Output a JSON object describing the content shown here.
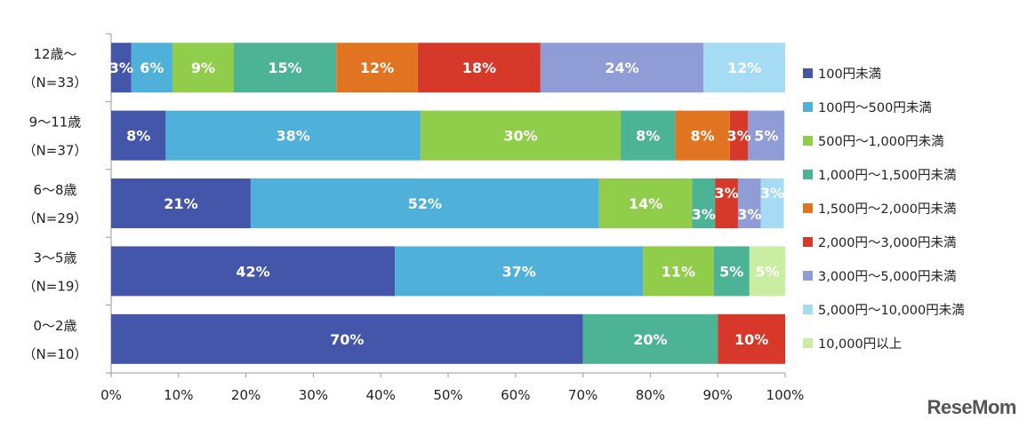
{
  "chart_data": {
    "type": "bar",
    "orientation": "horizontal",
    "stacked": "percent",
    "title": "",
    "xlabel": "",
    "ylabel": "",
    "xlim": [
      0,
      100
    ],
    "x_ticks": [
      "0%",
      "10%",
      "20%",
      "30%",
      "40%",
      "50%",
      "60%",
      "70%",
      "80%",
      "90%",
      "100%"
    ],
    "grid": false,
    "legend_position": "right",
    "categories": [
      {
        "label": "12歳～",
        "n": "（N=33）"
      },
      {
        "label": "9～11歳",
        "n": "（N=37）"
      },
      {
        "label": "6～8歳",
        "n": "（N=29）"
      },
      {
        "label": "3～5歳",
        "n": "（N=19）"
      },
      {
        "label": "0～2歳",
        "n": "（N=10）"
      }
    ],
    "series": [
      {
        "name": "100円未満",
        "color": "#4356a9",
        "values": [
          3.0,
          8.1,
          20.7,
          42.1,
          70
        ],
        "labels": [
          "3%",
          "8%",
          "21%",
          "42%",
          "70%"
        ]
      },
      {
        "name": "100円～500円未満",
        "color": "#4fb1d9",
        "values": [
          6.1,
          37.8,
          51.7,
          36.8,
          0
        ],
        "labels": [
          "6%",
          "38%",
          "52%",
          "37%",
          ""
        ]
      },
      {
        "name": "500円～1,000円未満",
        "color": "#8fcd4b",
        "values": [
          9.1,
          29.7,
          13.8,
          10.5,
          0
        ],
        "labels": [
          "9%",
          "30%",
          "14%",
          "11%",
          ""
        ]
      },
      {
        "name": "1,000円～1,500円未満",
        "color": "#4db395",
        "values": [
          15.2,
          8.1,
          3.4,
          5.3,
          20
        ],
        "labels": [
          "15%",
          "8%",
          "3%",
          "5%",
          "20%"
        ]
      },
      {
        "name": "1,500円～2,000円未満",
        "color": "#e17421",
        "values": [
          12.1,
          8.1,
          0,
          0,
          0
        ],
        "labels": [
          "12%",
          "8%",
          "",
          "",
          ""
        ]
      },
      {
        "name": "2,000円～3,000円未満",
        "color": "#d6392a",
        "values": [
          18.2,
          2.7,
          3.4,
          0,
          10
        ],
        "labels": [
          "18%",
          "3%",
          "3%",
          "",
          "10%"
        ]
      },
      {
        "name": "3,000円～5,000円未満",
        "color": "#8f9cd5",
        "values": [
          24.2,
          5.4,
          3.4,
          0,
          0
        ],
        "labels": [
          "24%",
          "5%",
          "3%",
          "",
          ""
        ]
      },
      {
        "name": "5,000円～10,000円未満",
        "color": "#a6dcf3",
        "values": [
          12.1,
          0,
          3.4,
          0,
          0
        ],
        "labels": [
          "12%",
          "",
          "3%",
          "",
          ""
        ]
      },
      {
        "name": "10,000円以上",
        "color": "#c9eea2",
        "values": [
          0,
          0,
          0,
          5.3,
          0
        ],
        "labels": [
          "",
          "",
          "",
          "5%",
          ""
        ]
      }
    ]
  },
  "logo": "ReseMom"
}
